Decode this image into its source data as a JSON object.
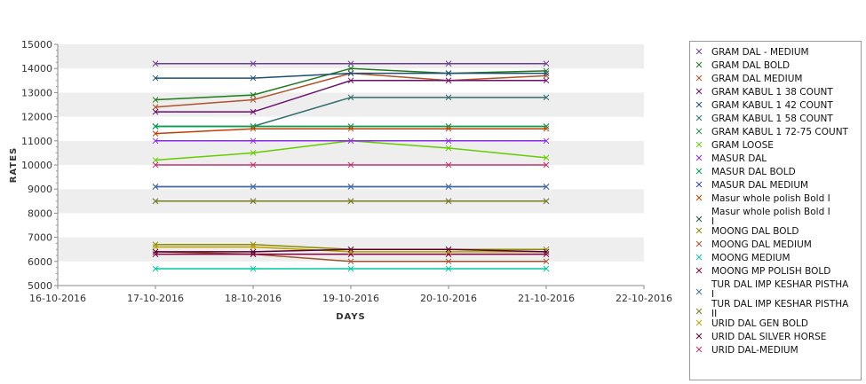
{
  "chart_data": {
    "type": "line",
    "title": "",
    "xlabel": "DAYS",
    "ylabel": "RATES",
    "x_ticks": [
      "16-10-2016",
      "17-10-2016",
      "18-10-2016",
      "19-10-2016",
      "20-10-2016",
      "21-10-2016",
      "22-10-2016"
    ],
    "y_ticks": [
      5000,
      6000,
      7000,
      8000,
      9000,
      10000,
      11000,
      12000,
      13000,
      14000,
      15000
    ],
    "x": [
      "17-10-2016",
      "18-10-2016",
      "19-10-2016",
      "20-10-2016",
      "21-10-2016"
    ],
    "xlim": [
      "16-10-2016",
      "22-10-2016"
    ],
    "ylim": [
      5000,
      15000
    ],
    "grid": "horizontal bands",
    "legend_position": "right",
    "series": [
      {
        "name": "GRAM DAL - MEDIUM",
        "color": "#6f3f8f",
        "values": [
          14200,
          14200,
          14200,
          14200,
          14200
        ]
      },
      {
        "name": "GRAM DAL BOLD",
        "color": "#1f7a1f",
        "values": [
          12700,
          12900,
          14000,
          13800,
          13900
        ]
      },
      {
        "name": "GRAM DAL MEDIUM",
        "color": "#b0522a",
        "values": [
          12400,
          12700,
          13800,
          13500,
          13700
        ]
      },
      {
        "name": "GRAM KABUL 1 38 COUNT",
        "color": "#6a0f6a",
        "values": [
          12200,
          12200,
          13500,
          13500,
          13500
        ]
      },
      {
        "name": "GRAM KABUL 1 42 COUNT",
        "color": "#1f4e6e",
        "values": [
          13600,
          13600,
          13800,
          13800,
          13800
        ]
      },
      {
        "name": "GRAM KABUL 1 58 COUNT",
        "color": "#2e6e6e",
        "values": [
          11600,
          11600,
          12800,
          12800,
          12800
        ]
      },
      {
        "name": "GRAM KABUL 1 72-75 COUNT",
        "color": "#2e8b57",
        "values": [
          11600,
          11600,
          11600,
          11600,
          11600
        ]
      },
      {
        "name": "GRAM LOOSE",
        "color": "#66cc00",
        "values": [
          10200,
          10500,
          11000,
          10700,
          10300
        ]
      },
      {
        "name": "MASUR DAL",
        "color": "#8a2be2",
        "values": [
          11000,
          11000,
          11000,
          11000,
          11000
        ]
      },
      {
        "name": "MASUR DAL BOLD",
        "color": "#00a050",
        "values": [
          11600,
          11600,
          11600,
          11600,
          11600
        ]
      },
      {
        "name": "MASUR DAL MEDIUM",
        "color": "#3a3ab0",
        "values": [
          9100,
          9100,
          9100,
          9100,
          9100
        ]
      },
      {
        "name": "Masur whole polish Bold I",
        "color": "#c04000",
        "values": [
          11300,
          11500,
          11500,
          11500,
          11500
        ]
      },
      {
        "name": "Masur whole polish Bold I I",
        "color": "#2f4f4f",
        "values": [
          8500,
          8500,
          8500,
          8500,
          8500
        ]
      },
      {
        "name": "MOONG DAL BOLD",
        "color": "#8b8b00",
        "values": [
          6700,
          6700,
          6500,
          6500,
          6500
        ]
      },
      {
        "name": "MOONG DAL MEDIUM",
        "color": "#a0522d",
        "values": [
          6400,
          6300,
          6000,
          6000,
          6000
        ]
      },
      {
        "name": "MOONG MEDIUM",
        "color": "#00c8a0",
        "values": [
          5700,
          5700,
          5700,
          5700,
          5700
        ]
      },
      {
        "name": "MOONG MP POLISH BOLD",
        "color": "#800040",
        "values": [
          6300,
          6300,
          6300,
          6300,
          6300
        ]
      },
      {
        "name": "TUR DAL IMP KESHAR PISTHA I",
        "color": "#3f6f9f",
        "values": [
          9100,
          9100,
          9100,
          9100,
          9100
        ]
      },
      {
        "name": "TUR DAL IMP KESHAR PISTHA II",
        "color": "#7a7a20",
        "values": [
          8500,
          8500,
          8500,
          8500,
          8500
        ]
      },
      {
        "name": "URID DAL GEN BOLD",
        "color": "#b8a000",
        "values": [
          6600,
          6600,
          6400,
          6400,
          6400
        ]
      },
      {
        "name": "URID DAL SILVER HORSE",
        "color": "#5a0030",
        "values": [
          6400,
          6400,
          6500,
          6500,
          6400
        ]
      },
      {
        "name": "URID DAL-MEDIUM",
        "color": "#c0306f",
        "values": [
          10000,
          10000,
          10000,
          10000,
          10000
        ]
      }
    ],
    "legend_labels": [
      [
        "GRAM DAL - MEDIUM"
      ],
      [
        "GRAM DAL BOLD"
      ],
      [
        "GRAM DAL MEDIUM"
      ],
      [
        "GRAM KABUL 1 38 COUNT"
      ],
      [
        "GRAM KABUL 1 42 COUNT"
      ],
      [
        "GRAM KABUL 1 58 COUNT"
      ],
      [
        "GRAM KABUL 1 72-75 COUNT"
      ],
      [
        "GRAM LOOSE"
      ],
      [
        "MASUR DAL"
      ],
      [
        "MASUR DAL BOLD"
      ],
      [
        "MASUR DAL MEDIUM"
      ],
      [
        "Masur whole polish Bold I"
      ],
      [
        "Masur whole polish Bold I",
        "I"
      ],
      [
        "MOONG DAL BOLD"
      ],
      [
        "MOONG DAL MEDIUM"
      ],
      [
        "MOONG MEDIUM"
      ],
      [
        "MOONG MP POLISH BOLD"
      ],
      [
        "TUR DAL IMP KESHAR PISTHA",
        " I"
      ],
      [
        "TUR DAL IMP KESHAR PISTHA",
        " II"
      ],
      [
        "URID DAL GEN BOLD"
      ],
      [
        "URID DAL SILVER HORSE"
      ],
      [
        "URID DAL-MEDIUM"
      ]
    ]
  }
}
